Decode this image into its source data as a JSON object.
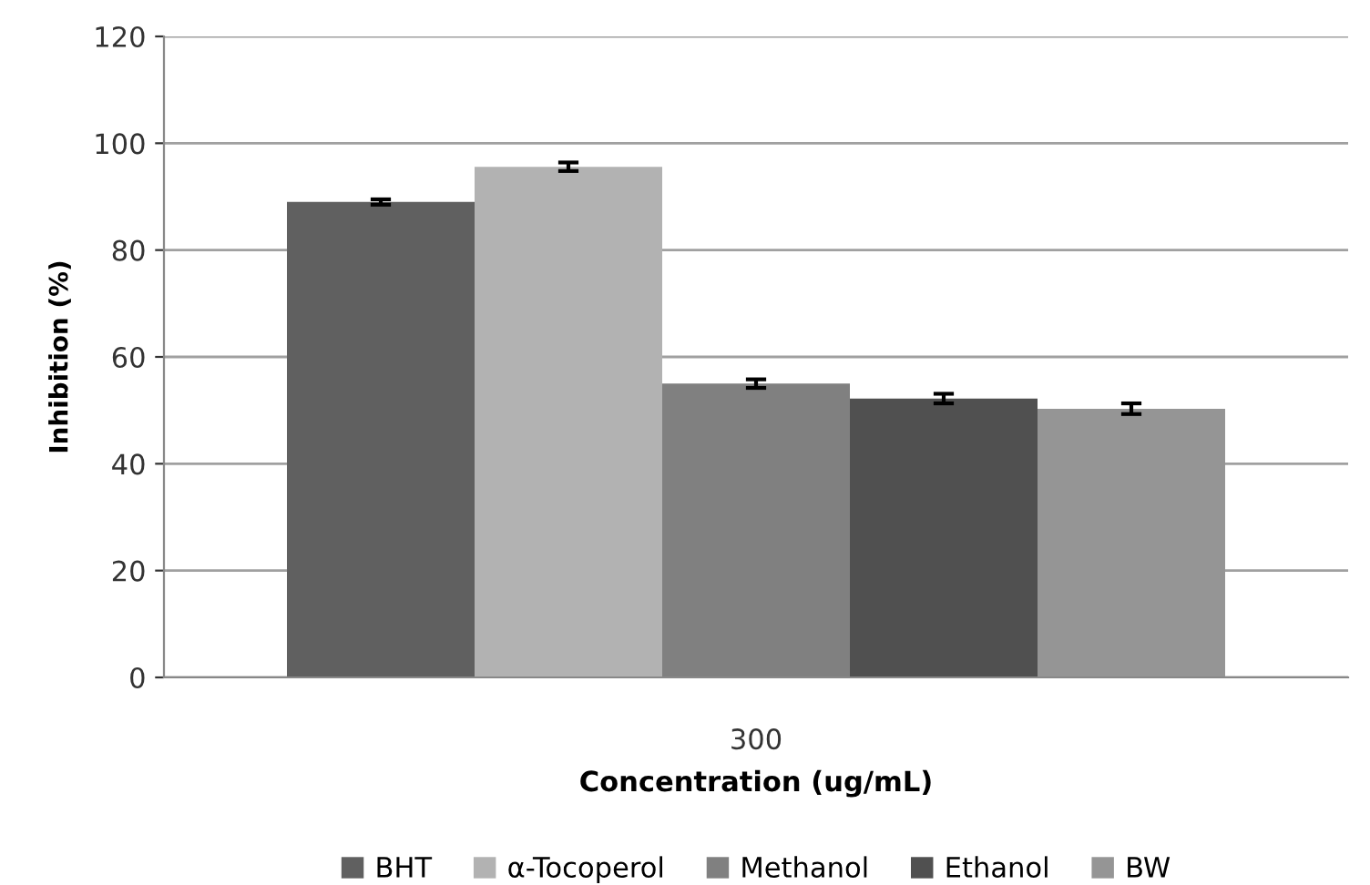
{
  "chart_data": {
    "type": "bar",
    "xlabel": "Concentration (ug/mL)",
    "ylabel": "Inhibition (%)",
    "categories": [
      "300"
    ],
    "series": [
      {
        "name": "BHT",
        "color": "#606060",
        "values": [
          89.0
        ],
        "errors": [
          0.5
        ]
      },
      {
        "name": "α-Tocoperol",
        "color": "#b2b2b2",
        "values": [
          95.6
        ],
        "errors": [
          0.8
        ]
      },
      {
        "name": "Methanol",
        "color": "#808080",
        "values": [
          55.0
        ],
        "errors": [
          0.8
        ]
      },
      {
        "name": "Ethanol",
        "color": "#505050",
        "values": [
          52.2
        ],
        "errors": [
          0.9
        ]
      },
      {
        "name": "BW",
        "color": "#959595",
        "values": [
          50.3
        ],
        "errors": [
          1.0
        ]
      }
    ],
    "ylim": [
      0,
      120
    ],
    "yticks": [
      0,
      20,
      40,
      60,
      80,
      100,
      120
    ],
    "grid": "y",
    "legend": "bottom"
  }
}
